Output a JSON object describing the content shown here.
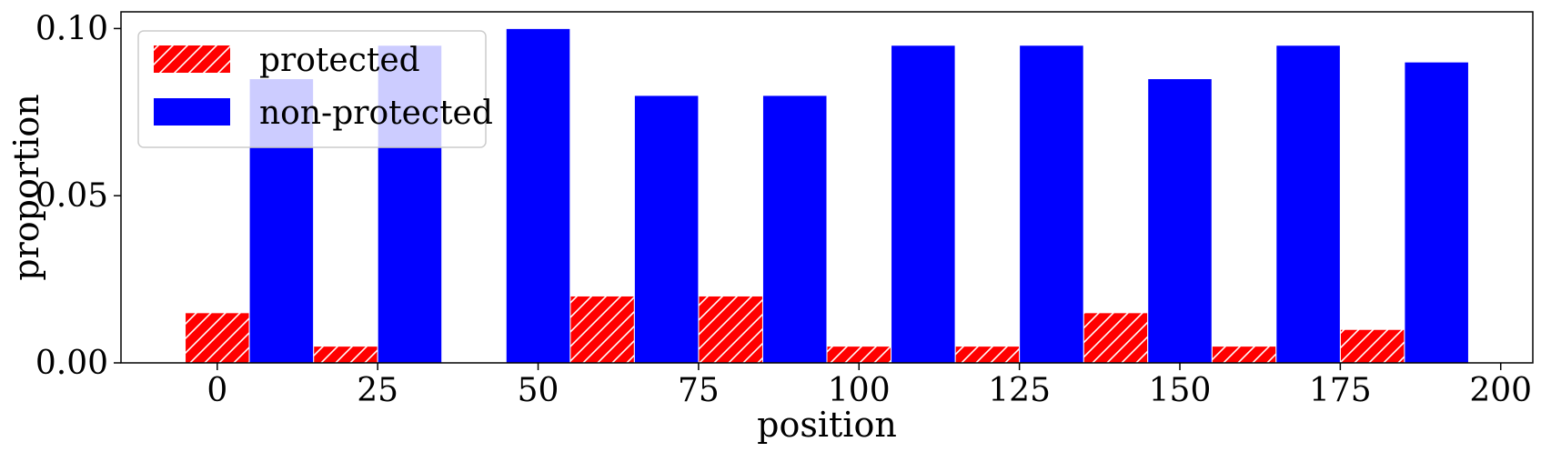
{
  "chart_data": {
    "type": "bar",
    "x": [
      0,
      20,
      40,
      60,
      80,
      100,
      120,
      140,
      160,
      180
    ],
    "series": [
      {
        "name": "protected",
        "color": "#ff0000",
        "hatch": true,
        "values": [
          0.015,
          0.005,
          0.0,
          0.02,
          0.02,
          0.005,
          0.005,
          0.015,
          0.005,
          0.01
        ]
      },
      {
        "name": "non-protected",
        "color": "#0000ff",
        "hatch": false,
        "values": [
          0.085,
          0.095,
          0.1,
          0.08,
          0.08,
          0.095,
          0.095,
          0.085,
          0.095,
          0.09
        ]
      }
    ],
    "xlabel": "position",
    "ylabel": "proportion",
    "xlim": [
      -15,
      205
    ],
    "ylim": [
      0,
      0.105
    ],
    "xticks": [
      0,
      25,
      50,
      75,
      100,
      125,
      150,
      175,
      200
    ],
    "xtick_labels": [
      "0",
      "25",
      "50",
      "75",
      "100",
      "125",
      "150",
      "175",
      "200"
    ],
    "yticks": [
      0,
      0.05,
      0.1
    ],
    "ytick_labels": [
      "0.00",
      "0.05",
      "0.10"
    ],
    "bar_width": 10,
    "grid": false,
    "legend_placement": "top-left"
  }
}
